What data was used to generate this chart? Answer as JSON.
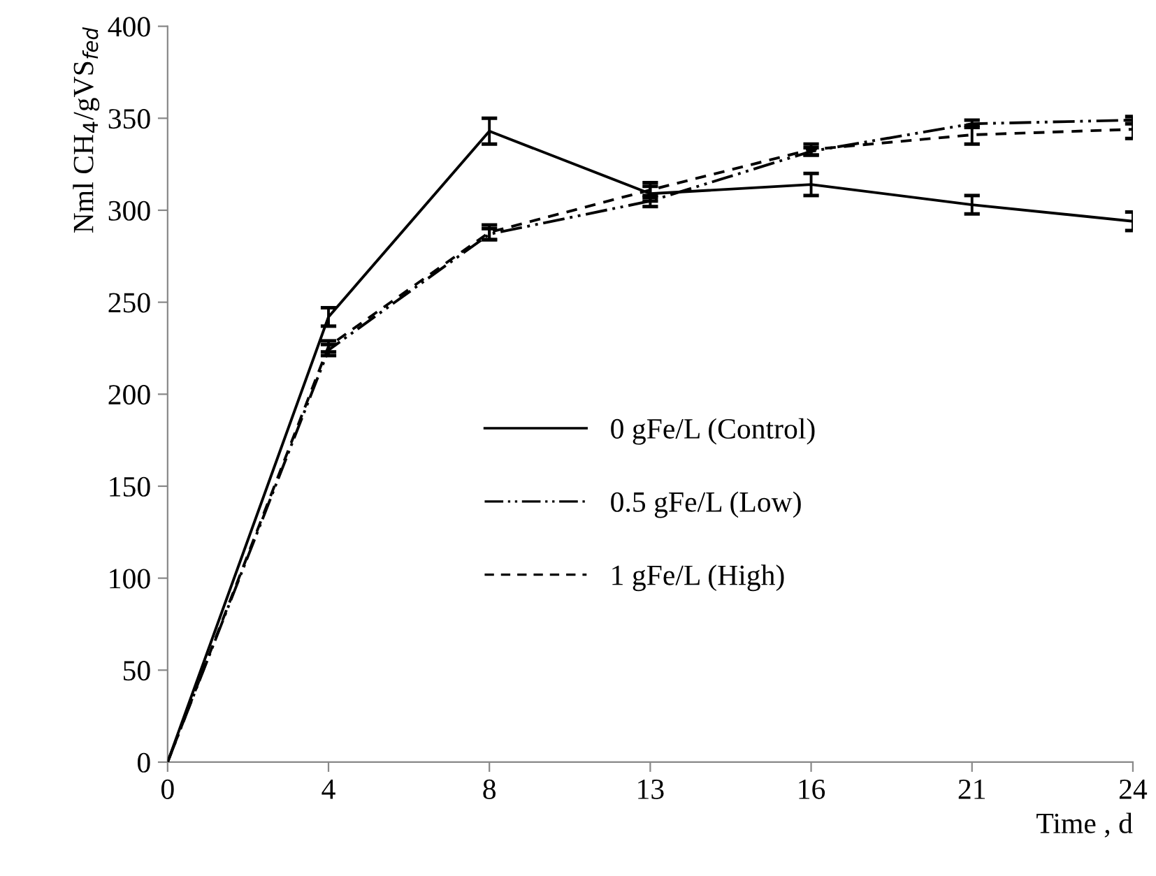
{
  "chart_data": {
    "type": "line",
    "xlabel": "Time , d",
    "ylabel": "Nml CH$_{4}$/gVS$_{fed}$",
    "categories": [
      "0",
      "4",
      "8",
      "13",
      "16",
      "21",
      "24"
    ],
    "series": [
      {
        "name": "0 gFe/L (Control)",
        "color": "#000000",
        "line_style": "solid",
        "values": [
          0,
          242,
          343,
          309,
          314,
          303,
          294
        ],
        "errors": [
          null,
          5,
          7,
          4,
          6,
          5,
          5
        ]
      },
      {
        "name": "0.5 gFe/L (Low)",
        "color": "#000000",
        "line_style": "dashdotdot",
        "values": [
          0,
          224,
          287,
          305,
          332,
          347,
          349
        ],
        "errors": [
          null,
          3,
          3,
          3,
          2,
          2,
          2
        ]
      },
      {
        "name": "1 gFe/L (High)",
        "color": "#000000",
        "line_style": "dashed",
        "values": [
          0,
          226,
          288,
          311,
          333,
          341,
          344
        ],
        "errors": [
          null,
          3,
          4,
          4,
          3,
          5,
          5
        ]
      }
    ],
    "ylim": [
      0,
      400
    ],
    "yticks": [
      0,
      50,
      100,
      150,
      200,
      250,
      300,
      350,
      400
    ],
    "grid": false,
    "legend": "center",
    "marker": "none"
  }
}
